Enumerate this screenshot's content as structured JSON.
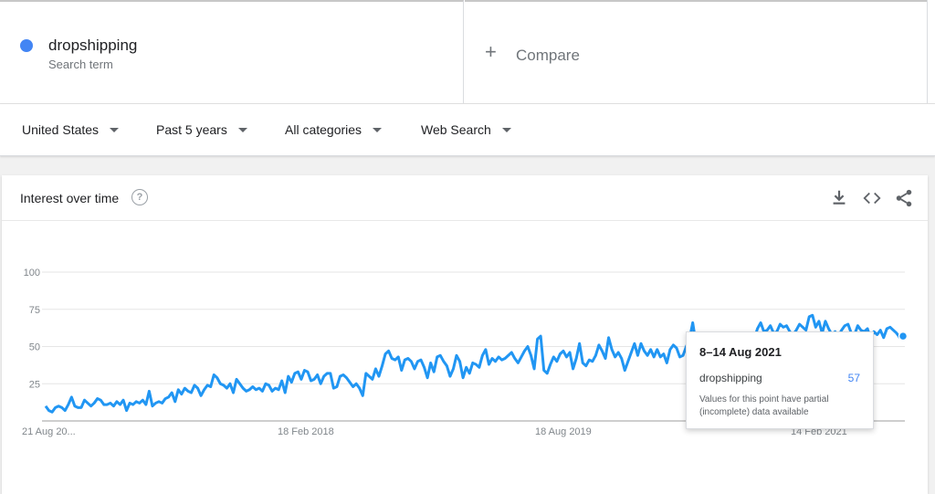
{
  "search_term": {
    "name": "dropshipping",
    "subtitle": "Search term",
    "color": "#4285f4"
  },
  "compare": {
    "label": "Compare"
  },
  "filters": {
    "region": "United States",
    "period": "Past 5 years",
    "category": "All categories",
    "property": "Web Search"
  },
  "card": {
    "title": "Interest over time",
    "help_icon": "question-mark-icon",
    "actions": [
      "download-icon",
      "embed-code-icon",
      "share-icon"
    ]
  },
  "tooltip": {
    "date": "8–14 Aug 2021",
    "term": "dropshipping",
    "value": "57",
    "note": "Values for this point have partial (incomplete) data available"
  },
  "chart_data": {
    "type": "line",
    "title": "",
    "xlabel": "",
    "ylabel": "",
    "ylim": [
      0,
      100
    ],
    "yticks": [
      25,
      50,
      75,
      100
    ],
    "grid": true,
    "x_start": "21 Aug 2016",
    "x_end": "8 Aug 2021",
    "x_tick_labels": [
      "21 Aug 20...",
      "18 Feb 2018",
      "18 Aug 2019",
      "14 Feb 2021"
    ],
    "line_color": "#2196f3",
    "series": [
      {
        "name": "dropshipping",
        "values": [
          10,
          7,
          6,
          9,
          10,
          9,
          7,
          11,
          16,
          10,
          9,
          9,
          14,
          12,
          10,
          12,
          15,
          14,
          11,
          11,
          12,
          10,
          13,
          11,
          14,
          7,
          12,
          11,
          13,
          12,
          14,
          11,
          20,
          10,
          12,
          13,
          12,
          15,
          16,
          19,
          13,
          21,
          18,
          22,
          20,
          19,
          24,
          22,
          17,
          21,
          24,
          23,
          31,
          29,
          25,
          24,
          22,
          25,
          19,
          28,
          25,
          22,
          20,
          21,
          23,
          21,
          22,
          20,
          25,
          24,
          20,
          22,
          21,
          27,
          19,
          30,
          26,
          32,
          33,
          28,
          34,
          33,
          27,
          28,
          31,
          25,
          30,
          32,
          32,
          22,
          23,
          30,
          31,
          29,
          26,
          23,
          25,
          22,
          17,
          32,
          30,
          28,
          35,
          30,
          37,
          45,
          47,
          42,
          41,
          43,
          34,
          41,
          42,
          40,
          35,
          40,
          41,
          36,
          29,
          39,
          33,
          43,
          44,
          40,
          37,
          30,
          35,
          44,
          40,
          29,
          36,
          32,
          39,
          38,
          36,
          44,
          48,
          38,
          42,
          40,
          43,
          41,
          42,
          44,
          46,
          42,
          39,
          43,
          47,
          50,
          44,
          35,
          55,
          57,
          34,
          32,
          38,
          43,
          40,
          45,
          47,
          43,
          46,
          35,
          42,
          52,
          39,
          37,
          41,
          40,
          44,
          51,
          47,
          42,
          56,
          48,
          43,
          46,
          42,
          34,
          40,
          46,
          52,
          44,
          52,
          47,
          44,
          48,
          43,
          48,
          43,
          45,
          39,
          48,
          51,
          49,
          43,
          44,
          50,
          55,
          66,
          52,
          48,
          50,
          45,
          44,
          49,
          47,
          42,
          49,
          47,
          40,
          43,
          45,
          39,
          42,
          54,
          57,
          59,
          55,
          62,
          66,
          60,
          61,
          64,
          59,
          60,
          65,
          63,
          64,
          60,
          58,
          61,
          65,
          63,
          61,
          70,
          71,
          63,
          67,
          59,
          67,
          62,
          58,
          60,
          57,
          61,
          64,
          65,
          59,
          58,
          64,
          61,
          60,
          62,
          55,
          60,
          58,
          61,
          56,
          62,
          63,
          61,
          59,
          56,
          57
        ]
      }
    ]
  }
}
